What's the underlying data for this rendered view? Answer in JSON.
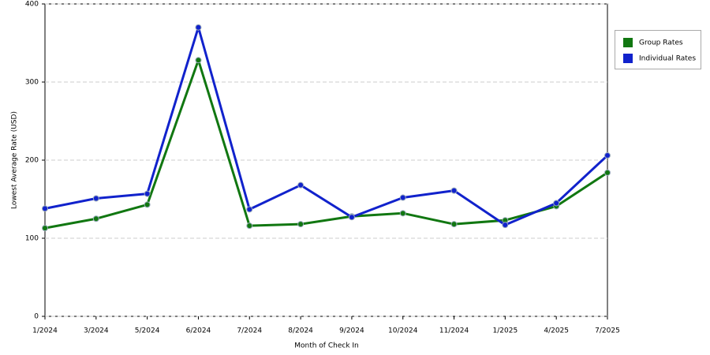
{
  "chart_data": {
    "type": "line",
    "x_label": "Month of Check In",
    "y_label": "Lowest Average Rate (USD)",
    "categories": [
      "1/2024",
      "3/2024",
      "5/2024",
      "6/2024",
      "7/2024",
      "8/2024",
      "9/2024",
      "10/2024",
      "11/2024",
      "1/2025",
      "4/2025",
      "7/2025"
    ],
    "series": [
      {
        "name": "Group Rates",
        "color": "#117711",
        "values": [
          113,
          125,
          143,
          328,
          116,
          118,
          128,
          132,
          118,
          123,
          141,
          184
        ]
      },
      {
        "name": "Individual Rates",
        "color": "#1122cc",
        "values": [
          138,
          151,
          157,
          370,
          137,
          168,
          127,
          152,
          161,
          117,
          145,
          206
        ]
      }
    ],
    "ylim": [
      0,
      400
    ],
    "yticks": [
      0,
      100,
      200,
      300,
      400
    ],
    "grid": true,
    "legend": "right"
  }
}
